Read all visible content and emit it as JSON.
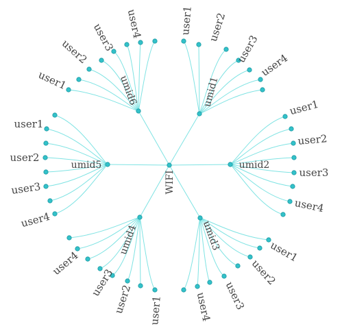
{
  "colors": {
    "edge": "#7fe3e3",
    "node_fill": "#33c1c9",
    "node_stroke": "#1d9aa3",
    "label": "#444444"
  },
  "tree": {
    "root": "WIFI",
    "children": [
      {
        "label": "umid1",
        "children": [
          "user1",
          "user2",
          "user3",
          "user4"
        ]
      },
      {
        "label": "umid2",
        "children": [
          "user1",
          "user2",
          "user3",
          "user4"
        ]
      },
      {
        "label": "umid3",
        "children": [
          "user1",
          "user2",
          "user3",
          "user4"
        ]
      },
      {
        "label": "umid4",
        "children": [
          "user1",
          "user2",
          "user3",
          "user4"
        ]
      },
      {
        "label": "umid5",
        "children": [
          "user1",
          "user2",
          "user3",
          "user4"
        ]
      },
      {
        "label": "umid6",
        "children": [
          "user1",
          "user2",
          "user3",
          "user4"
        ]
      }
    ]
  }
}
